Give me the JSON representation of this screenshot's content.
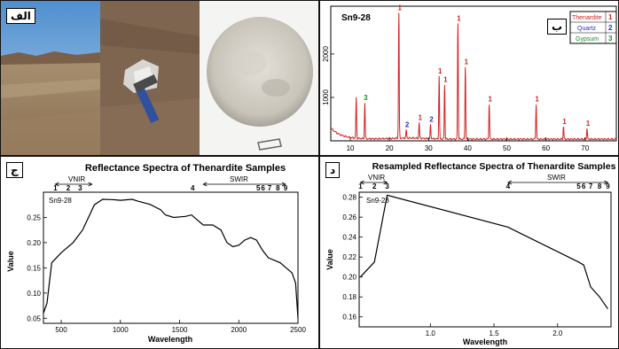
{
  "panel_labels": {
    "a": "الف",
    "b": "ب",
    "c": "ج",
    "d": "د"
  },
  "xrd": {
    "sample": "Sn9-28",
    "legend": [
      {
        "name": "Thenardite",
        "num": "1",
        "color": "#d42020"
      },
      {
        "name": "Quartz",
        "num": "2",
        "color": "#2030c0"
      },
      {
        "name": "Gypsum",
        "num": "3",
        "color": "#1a8a2a"
      }
    ]
  },
  "spec_c": {
    "title": "Reflectance Spectra of Thenardite Samples",
    "sample": "Sn9-28",
    "vnir": "VNIR",
    "swir": "SWIR"
  },
  "spec_d": {
    "title": "Resampled Reflectance Spectra of Thenardite Samples",
    "sample": "Sn9-28",
    "vnir": "VNIR",
    "swir": "SWIR"
  },
  "chart_data": [
    {
      "type": "line",
      "panel": "b",
      "xlabel": "",
      "ylabel": "",
      "xlim": [
        5,
        78
      ],
      "ylim": [
        0,
        3100
      ],
      "xticks": [
        "10",
        "20",
        "30",
        "40",
        "50",
        "60",
        "70"
      ],
      "yticks": [
        "1000",
        "2000"
      ],
      "peaks": [
        {
          "x": 11.5,
          "y": 1000,
          "label": "",
          "phase": 0
        },
        {
          "x": 13.7,
          "y": 880,
          "label": "3",
          "phase": 3
        },
        {
          "x": 22.4,
          "y": 2950,
          "label": "1",
          "phase": 1
        },
        {
          "x": 24.3,
          "y": 250,
          "label": "2",
          "phase": 2
        },
        {
          "x": 27.6,
          "y": 420,
          "label": "1",
          "phase": 1
        },
        {
          "x": 30.5,
          "y": 380,
          "label": "2",
          "phase": 2
        },
        {
          "x": 32.7,
          "y": 1490,
          "label": "1",
          "phase": 1
        },
        {
          "x": 34.1,
          "y": 1290,
          "label": "1",
          "phase": 1
        },
        {
          "x": 37.5,
          "y": 2700,
          "label": "1",
          "phase": 1
        },
        {
          "x": 39.4,
          "y": 1700,
          "label": "1",
          "phase": 1
        },
        {
          "x": 45.5,
          "y": 850,
          "label": "1",
          "phase": 1
        },
        {
          "x": 57.5,
          "y": 850,
          "label": "1",
          "phase": 1
        },
        {
          "x": 64.5,
          "y": 330,
          "label": "1",
          "phase": 1
        },
        {
          "x": 70.5,
          "y": 290,
          "label": "1",
          "phase": 1
        }
      ]
    },
    {
      "type": "line",
      "panel": "c",
      "title": "Reflectance Spectra of Thenardite Samples",
      "xlabel": "Wavelength",
      "ylabel": "Value",
      "xlim": [
        350,
        2500
      ],
      "ylim": [
        0.04,
        0.3
      ],
      "xticks": [
        "500",
        "1000",
        "1500",
        "2000",
        "2500"
      ],
      "yticks": [
        "0.05",
        "0.10",
        "0.15",
        "0.20",
        "0.25"
      ],
      "bands": [
        {
          "label": "1",
          "x": 450
        },
        {
          "label": "2",
          "x": 560
        },
        {
          "label": "3",
          "x": 660
        },
        {
          "label": "4",
          "x": 1610
        },
        {
          "label": "5",
          "x": 2165
        },
        {
          "label": "6",
          "x": 2205
        },
        {
          "label": "7",
          "x": 2260
        },
        {
          "label": "8",
          "x": 2330
        },
        {
          "label": "9",
          "x": 2395
        }
      ],
      "series": [
        {
          "points": [
            [
              350,
              0.06
            ],
            [
              380,
              0.08
            ],
            [
              420,
              0.16
            ],
            [
              500,
              0.18
            ],
            [
              600,
              0.2
            ],
            [
              680,
              0.225
            ],
            [
              740,
              0.255
            ],
            [
              780,
              0.275
            ],
            [
              850,
              0.286
            ],
            [
              950,
              0.285
            ],
            [
              1000,
              0.284
            ],
            [
              1100,
              0.286
            ],
            [
              1150,
              0.282
            ],
            [
              1250,
              0.276
            ],
            [
              1340,
              0.265
            ],
            [
              1380,
              0.255
            ],
            [
              1450,
              0.25
            ],
            [
              1550,
              0.252
            ],
            [
              1600,
              0.255
            ],
            [
              1650,
              0.245
            ],
            [
              1700,
              0.235
            ],
            [
              1780,
              0.235
            ],
            [
              1850,
              0.225
            ],
            [
              1900,
              0.2
            ],
            [
              1950,
              0.192
            ],
            [
              2000,
              0.195
            ],
            [
              2050,
              0.205
            ],
            [
              2100,
              0.21
            ],
            [
              2150,
              0.205
            ],
            [
              2200,
              0.185
            ],
            [
              2250,
              0.17
            ],
            [
              2300,
              0.165
            ],
            [
              2350,
              0.16
            ],
            [
              2400,
              0.15
            ],
            [
              2450,
              0.14
            ],
            [
              2480,
              0.12
            ],
            [
              2500,
              0.05
            ]
          ]
        }
      ]
    },
    {
      "type": "line",
      "panel": "d",
      "title": "Resampled Reflectance Spectra of Thenardite Samples",
      "xlabel": "Wavelength",
      "ylabel": "Value",
      "xlim": [
        0.44,
        2.42
      ],
      "ylim": [
        0.15,
        0.285
      ],
      "xticks": [
        "1.0",
        "1.5",
        "2.0"
      ],
      "yticks": [
        "0.16",
        "0.18",
        "0.20",
        "0.22",
        "0.24",
        "0.26",
        "0.28"
      ],
      "bands": [
        {
          "label": "1",
          "x": 0.45
        },
        {
          "label": "2",
          "x": 0.56
        },
        {
          "label": "3",
          "x": 0.66
        },
        {
          "label": "4",
          "x": 1.61
        },
        {
          "label": "5",
          "x": 2.165
        },
        {
          "label": "6",
          "x": 2.205
        },
        {
          "label": "7",
          "x": 2.26
        },
        {
          "label": "8",
          "x": 2.33
        },
        {
          "label": "9",
          "x": 2.395
        }
      ],
      "series": [
        {
          "points": [
            [
              0.45,
              0.2
            ],
            [
              0.56,
              0.215
            ],
            [
              0.66,
              0.282
            ],
            [
              1.61,
              0.25
            ],
            [
              2.165,
              0.215
            ],
            [
              2.205,
              0.212
            ],
            [
              2.26,
              0.19
            ],
            [
              2.33,
              0.18
            ],
            [
              2.395,
              0.168
            ]
          ]
        }
      ]
    }
  ]
}
